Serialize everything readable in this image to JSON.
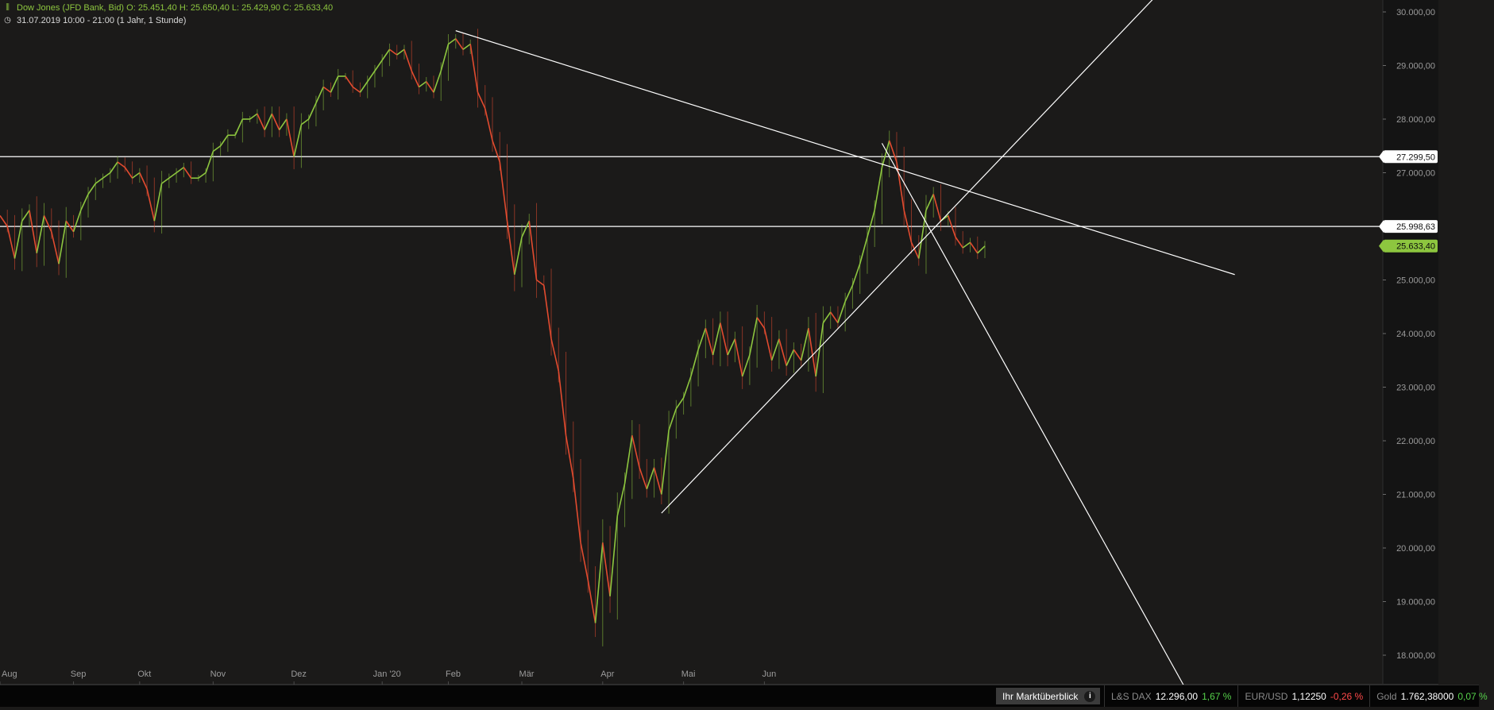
{
  "header": {
    "line1": "Dow Jones (JFD Bank, Bid)   O: 25.451,40   H: 25.650,40   L: 25.429,90   C: 25.633,40",
    "line2": "31.07.2019 10:00 - 21:00   (1 Jahr, 1 Stunde)",
    "chart_icon": "candlestick-icon",
    "clock_icon": "clock-icon"
  },
  "chart_data": {
    "type": "line",
    "title": "Dow Jones (JFD Bank, Bid)",
    "xlabel": "",
    "ylabel": "",
    "ylim": [
      17700,
      30300
    ],
    "y_ticks": [
      18000,
      19000,
      20000,
      21000,
      22000,
      23000,
      24000,
      25000,
      26000,
      27000,
      28000,
      29000,
      30000
    ],
    "y_tick_labels": [
      "18.000,00",
      "19.000,00",
      "20.000,00",
      "21.000,00",
      "22.000,00",
      "23.000,00",
      "24.000,00",
      "25.000,00",
      "26.000,00",
      "27.000,00",
      "28.000,00",
      "29.000,00",
      "30.000,00"
    ],
    "x_month_labels": [
      "Aug",
      "Sep",
      "Okt",
      "Nov",
      "Dez",
      "Jan '20",
      "Feb",
      "Mär",
      "Apr",
      "Mai",
      "Jun"
    ],
    "series": [
      {
        "values": [
          26200,
          26000,
          25400,
          26100,
          26300,
          25500,
          26200,
          25900,
          25300,
          26100,
          25900,
          26300,
          26600,
          26800,
          26900,
          27000,
          27200,
          27100,
          26900,
          27000,
          26700,
          26100,
          26800,
          26900,
          27000,
          27100,
          26900,
          26900,
          27000,
          27400,
          27500,
          27700,
          27700,
          28000,
          28000,
          28100,
          27800,
          28100,
          27800,
          28000,
          27300,
          27900,
          28000,
          28300,
          28600,
          28500,
          28800,
          28800,
          28600,
          28500,
          28700,
          28900,
          29100,
          29300,
          29200,
          29300,
          28900,
          28600,
          28700,
          28500,
          28900,
          29400,
          29500,
          29300,
          29400,
          28500,
          28200,
          27600,
          27200,
          26100,
          25100,
          25800,
          26100,
          25000,
          24900,
          23900,
          23300,
          22100,
          21300,
          20100,
          19400,
          18600,
          20100,
          19100,
          20600,
          21200,
          22100,
          21500,
          21100,
          21500,
          21000,
          22200,
          22600,
          22800,
          23200,
          23700,
          24100,
          23600,
          24200,
          23600,
          23900,
          23200,
          23600,
          24300,
          24100,
          23500,
          23900,
          23400,
          23700,
          23500,
          24100,
          23200,
          24200,
          24400,
          24200,
          24600,
          24900,
          25300,
          25800,
          26300,
          27100,
          27600,
          27200,
          26300,
          25700,
          25400,
          26300,
          26600,
          26100,
          26200,
          25800,
          25600,
          25700,
          25500,
          25633
        ]
      }
    ],
    "horizontal_lines": [
      {
        "value": 27299.5,
        "label": "27.299,50"
      },
      {
        "value": 25998.63,
        "label": "25.998,63"
      }
    ],
    "current_price": {
      "value": 25633.4,
      "label": "25.633,40",
      "color": "#8dc63f"
    },
    "trend_lines": [
      {
        "name": "downtrend-resistance",
        "from": {
          "index": 62,
          "value": 29650
        },
        "to": {
          "index": 168,
          "value": 25100
        }
      },
      {
        "name": "uptrend-support",
        "from": {
          "index": 90,
          "value": 20650
        },
        "to": {
          "index": 158,
          "value": 30400
        }
      },
      {
        "name": "short-term-downtrend",
        "from": {
          "index": 120,
          "value": 27550
        },
        "to": {
          "index": 161,
          "value": 17450
        }
      }
    ],
    "grid": false,
    "legend": "none",
    "colors": {
      "background": "#1b1a19",
      "axis_panel": "#141414",
      "up": "#8dc63f",
      "down": "#e24b2f",
      "lines": "#ffffff",
      "axis_text": "#9b9b9b"
    }
  },
  "bottom_bar": {
    "overview_label": "Ihr Marktüberblick",
    "info_icon": "info-icon",
    "tickers": [
      {
        "name": "L&S DAX",
        "value": "12.296,00",
        "change": "1,67 %",
        "direction": "up"
      },
      {
        "name": "EUR/USD",
        "value": "1,12250",
        "change": "-0,26 %",
        "direction": "down"
      },
      {
        "name": "Gold",
        "value": "1.762,38000",
        "change": "0,07 %",
        "direction": "up"
      }
    ]
  }
}
